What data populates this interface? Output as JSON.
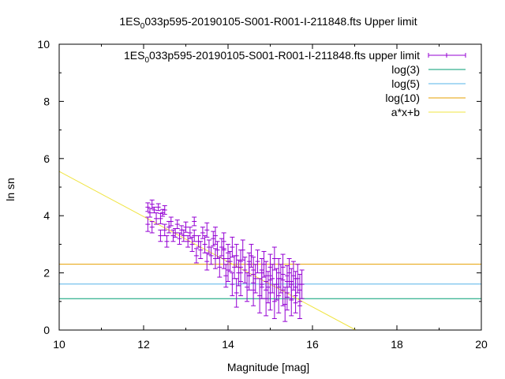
{
  "chart_data": {
    "type": "scatter",
    "title_parts": [
      "1ES",
      "0",
      "033p595-20190105-S001-R001-I-211848.fts Upper limit"
    ],
    "xlabel": "Magnitude [mag]",
    "ylabel": "ln sn",
    "xlim": [
      10,
      20
    ],
    "ylim": [
      0,
      10
    ],
    "x_ticks": [
      "10",
      "12",
      "14",
      "16",
      "18",
      "20"
    ],
    "y_ticks": [
      "0",
      "2",
      "4",
      "6",
      "8",
      "10"
    ],
    "legend_position": "top-right",
    "legend": [
      {
        "key": "data",
        "parts": [
          "1ES",
          "0",
          "033p595-20190105-S001-R001-I-211848.fts upper limit"
        ],
        "color": "#9400d3"
      },
      {
        "key": "log3",
        "label": "log(3)",
        "color": "#009e73"
      },
      {
        "key": "log5",
        "label": "log(5)",
        "color": "#56b4e9"
      },
      {
        "key": "log10",
        "label": "log(10)",
        "color": "#e69f00"
      },
      {
        "key": "fit",
        "label": "a*x+b",
        "color": "#f0e442"
      }
    ],
    "hlines": [
      {
        "key": "log3",
        "y": 1.0986
      },
      {
        "key": "log5",
        "y": 1.6094
      },
      {
        "key": "log10",
        "y": 2.3026
      }
    ],
    "fit_line": {
      "slope": -0.79,
      "intercept": 13.45
    },
    "series": [
      {
        "key": "data",
        "points": [
          [
            12.1,
            4.3,
            0.15
          ],
          [
            12.1,
            3.7,
            0.25
          ],
          [
            12.15,
            4.1,
            0.15
          ],
          [
            12.2,
            3.6,
            0.2
          ],
          [
            12.2,
            4.4,
            0.15
          ],
          [
            12.25,
            4.2,
            0.1
          ],
          [
            12.3,
            3.9,
            0.2
          ],
          [
            12.35,
            4.3,
            0.12
          ],
          [
            12.4,
            3.3,
            0.2
          ],
          [
            12.4,
            3.9,
            0.18
          ],
          [
            12.45,
            4.1,
            0.12
          ],
          [
            12.5,
            3.5,
            0.2
          ],
          [
            12.5,
            4.2,
            0.15
          ],
          [
            12.55,
            3.1,
            0.2
          ],
          [
            12.6,
            3.6,
            0.2
          ],
          [
            12.65,
            3.8,
            0.15
          ],
          [
            12.7,
            3.3,
            0.2
          ],
          [
            12.75,
            3.4,
            0.15
          ],
          [
            12.8,
            3.7,
            0.15
          ],
          [
            12.85,
            3.2,
            0.2
          ],
          [
            12.9,
            3.5,
            0.15
          ],
          [
            12.95,
            3.3,
            0.2
          ],
          [
            13.0,
            3.6,
            0.18
          ],
          [
            13.05,
            3.1,
            0.2
          ],
          [
            13.1,
            3.4,
            0.2
          ],
          [
            13.15,
            3.0,
            0.25
          ],
          [
            13.2,
            3.3,
            0.2
          ],
          [
            13.2,
            3.8,
            0.15
          ],
          [
            13.25,
            2.6,
            0.25
          ],
          [
            13.3,
            3.1,
            0.2
          ],
          [
            13.35,
            2.8,
            0.3
          ],
          [
            13.4,
            3.4,
            0.2
          ],
          [
            13.45,
            3.0,
            0.3
          ],
          [
            13.5,
            2.4,
            0.3
          ],
          [
            13.5,
            3.5,
            0.25
          ],
          [
            13.55,
            2.9,
            0.25
          ],
          [
            13.6,
            2.6,
            0.3
          ],
          [
            13.65,
            3.2,
            0.25
          ],
          [
            13.7,
            2.5,
            0.35
          ],
          [
            13.7,
            3.3,
            0.3
          ],
          [
            13.75,
            2.8,
            0.3
          ],
          [
            13.8,
            2.2,
            0.35
          ],
          [
            13.85,
            2.9,
            0.3
          ],
          [
            13.9,
            2.5,
            0.35
          ],
          [
            13.9,
            3.1,
            0.3
          ],
          [
            13.95,
            1.9,
            0.4
          ],
          [
            14.0,
            2.7,
            0.3
          ],
          [
            14.0,
            2.1,
            0.4
          ],
          [
            14.05,
            2.4,
            0.35
          ],
          [
            14.1,
            1.6,
            0.4
          ],
          [
            14.1,
            2.9,
            0.35
          ],
          [
            14.15,
            2.2,
            0.4
          ],
          [
            14.2,
            1.3,
            0.5
          ],
          [
            14.2,
            2.6,
            0.4
          ],
          [
            14.25,
            2.0,
            0.45
          ],
          [
            14.3,
            2.4,
            0.4
          ],
          [
            14.3,
            1.7,
            0.5
          ],
          [
            14.35,
            2.8,
            0.35
          ],
          [
            14.4,
            2.1,
            0.45
          ],
          [
            14.45,
            1.5,
            0.5
          ],
          [
            14.5,
            2.3,
            0.4
          ],
          [
            14.5,
            1.9,
            0.5
          ],
          [
            14.55,
            2.6,
            0.4
          ],
          [
            14.6,
            1.4,
            0.55
          ],
          [
            14.6,
            2.1,
            0.45
          ],
          [
            14.65,
            1.8,
            0.5
          ],
          [
            14.7,
            2.4,
            0.4
          ],
          [
            14.75,
            1.2,
            0.6
          ],
          [
            14.8,
            2.0,
            0.5
          ],
          [
            14.8,
            1.6,
            0.5
          ],
          [
            14.85,
            2.3,
            0.45
          ],
          [
            14.9,
            1.1,
            0.6
          ],
          [
            14.9,
            1.9,
            0.5
          ],
          [
            14.95,
            1.5,
            0.55
          ],
          [
            15.0,
            2.2,
            0.45
          ],
          [
            15.0,
            1.3,
            0.6
          ],
          [
            15.05,
            1.8,
            0.5
          ],
          [
            15.1,
            2.5,
            0.4
          ],
          [
            15.1,
            1.0,
            0.6
          ],
          [
            15.15,
            1.6,
            0.55
          ],
          [
            15.2,
            2.0,
            0.5
          ],
          [
            15.2,
            1.2,
            0.6
          ],
          [
            15.25,
            1.8,
            0.5
          ],
          [
            15.3,
            1.4,
            0.55
          ],
          [
            15.3,
            2.2,
            0.45
          ],
          [
            15.35,
            0.9,
            0.6
          ],
          [
            15.4,
            1.7,
            0.55
          ],
          [
            15.4,
            1.3,
            0.6
          ],
          [
            15.45,
            2.0,
            0.5
          ],
          [
            15.5,
            1.1,
            0.6
          ],
          [
            15.5,
            1.6,
            0.55
          ],
          [
            15.55,
            1.9,
            0.5
          ],
          [
            15.6,
            1.2,
            0.6
          ],
          [
            15.6,
            1.5,
            0.55
          ],
          [
            15.65,
            1.8,
            0.5
          ],
          [
            15.7,
            1.0,
            0.6
          ],
          [
            15.7,
            1.4,
            0.55
          ],
          [
            15.75,
            1.6,
            0.5
          ]
        ]
      }
    ]
  }
}
